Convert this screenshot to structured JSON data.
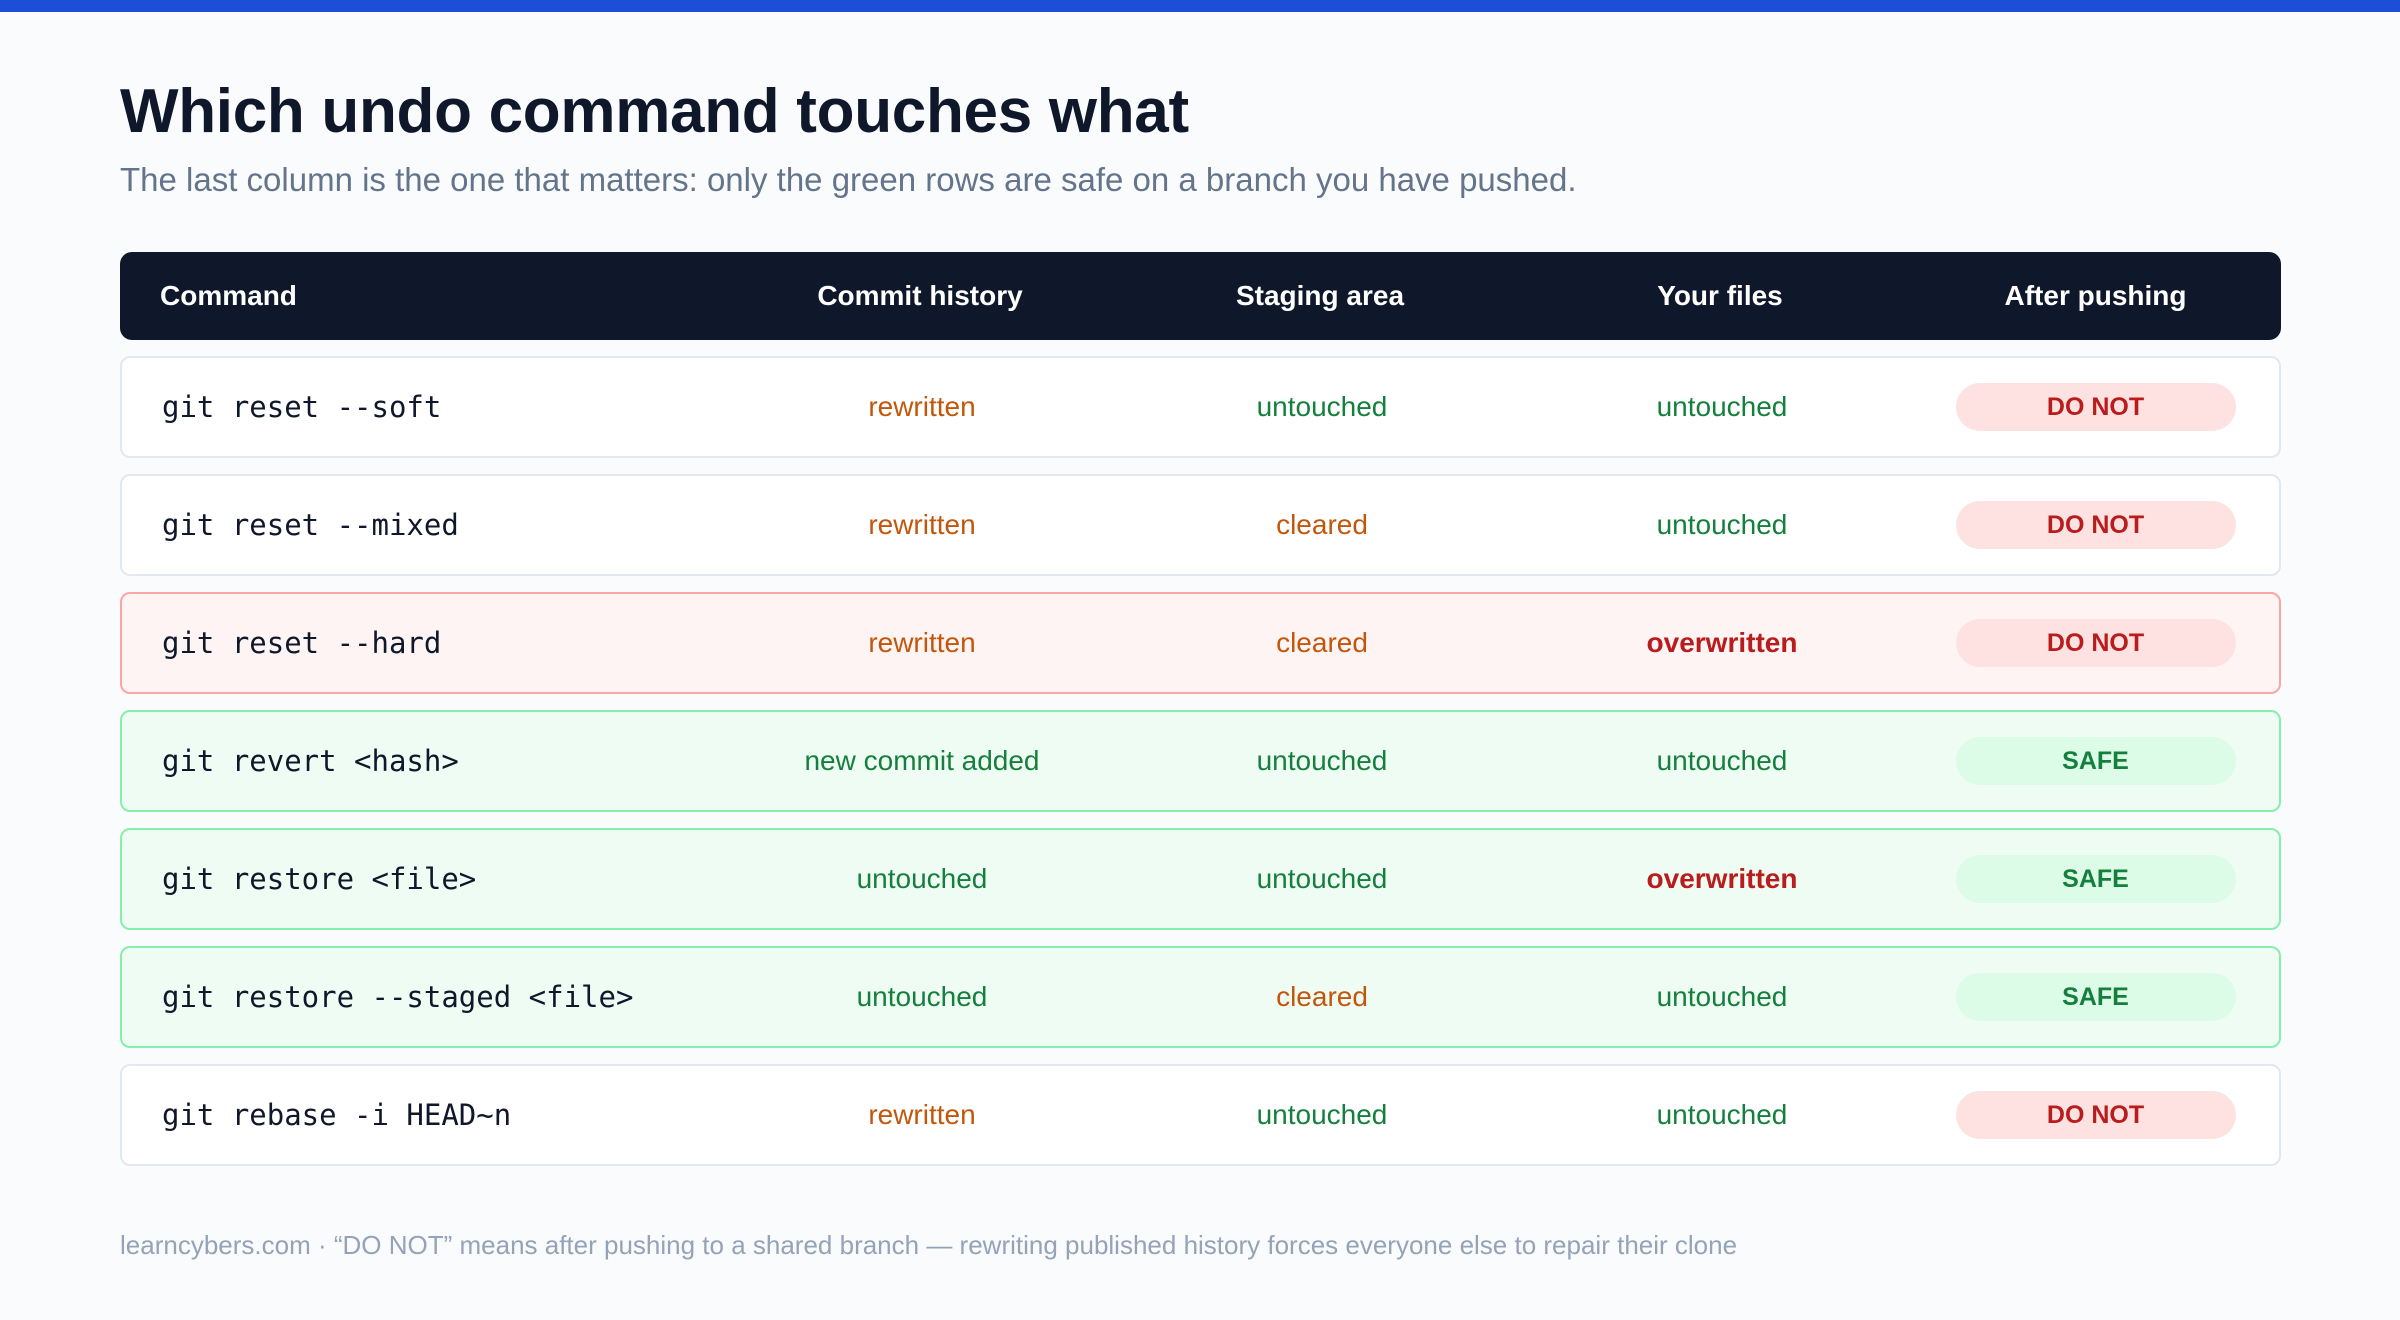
{
  "header": {
    "title": "Which undo command touches what",
    "subtitle": "The last column is the one that matters: only the green rows are safe on a branch you have pushed."
  },
  "table": {
    "columns": [
      "Command",
      "Commit history",
      "Staging area",
      "Your files",
      "After pushing"
    ],
    "rows": [
      {
        "command": "git reset --soft",
        "history": "rewritten",
        "staging": "untouched",
        "files": "untouched",
        "after": "DO NOT"
      },
      {
        "command": "git reset --mixed",
        "history": "rewritten",
        "staging": "cleared",
        "files": "untouched",
        "after": "DO NOT"
      },
      {
        "command": "git reset --hard",
        "history": "rewritten",
        "staging": "cleared",
        "files": "overwritten",
        "after": "DO NOT"
      },
      {
        "command": "git revert <hash>",
        "history": "new commit added",
        "staging": "untouched",
        "files": "untouched",
        "after": "SAFE"
      },
      {
        "command": "git restore <file>",
        "history": "untouched",
        "staging": "untouched",
        "files": "overwritten",
        "after": "SAFE"
      },
      {
        "command": "git restore --staged <file>",
        "history": "untouched",
        "staging": "cleared",
        "files": "untouched",
        "after": "SAFE"
      },
      {
        "command": "git rebase -i HEAD~n",
        "history": "rewritten",
        "staging": "untouched",
        "files": "untouched",
        "after": "DO NOT"
      }
    ]
  },
  "footer": {
    "text": "learncybers.com · “DO NOT” means after pushing to a shared branch — rewriting published history forces everyone else to repair their clone"
  },
  "colors": {
    "accent_bar": "#1d4ed8",
    "header_bg": "#0f172a",
    "safe_text": "#15803d",
    "warn_text": "#c2570c",
    "danger_text": "#b91c1c"
  }
}
